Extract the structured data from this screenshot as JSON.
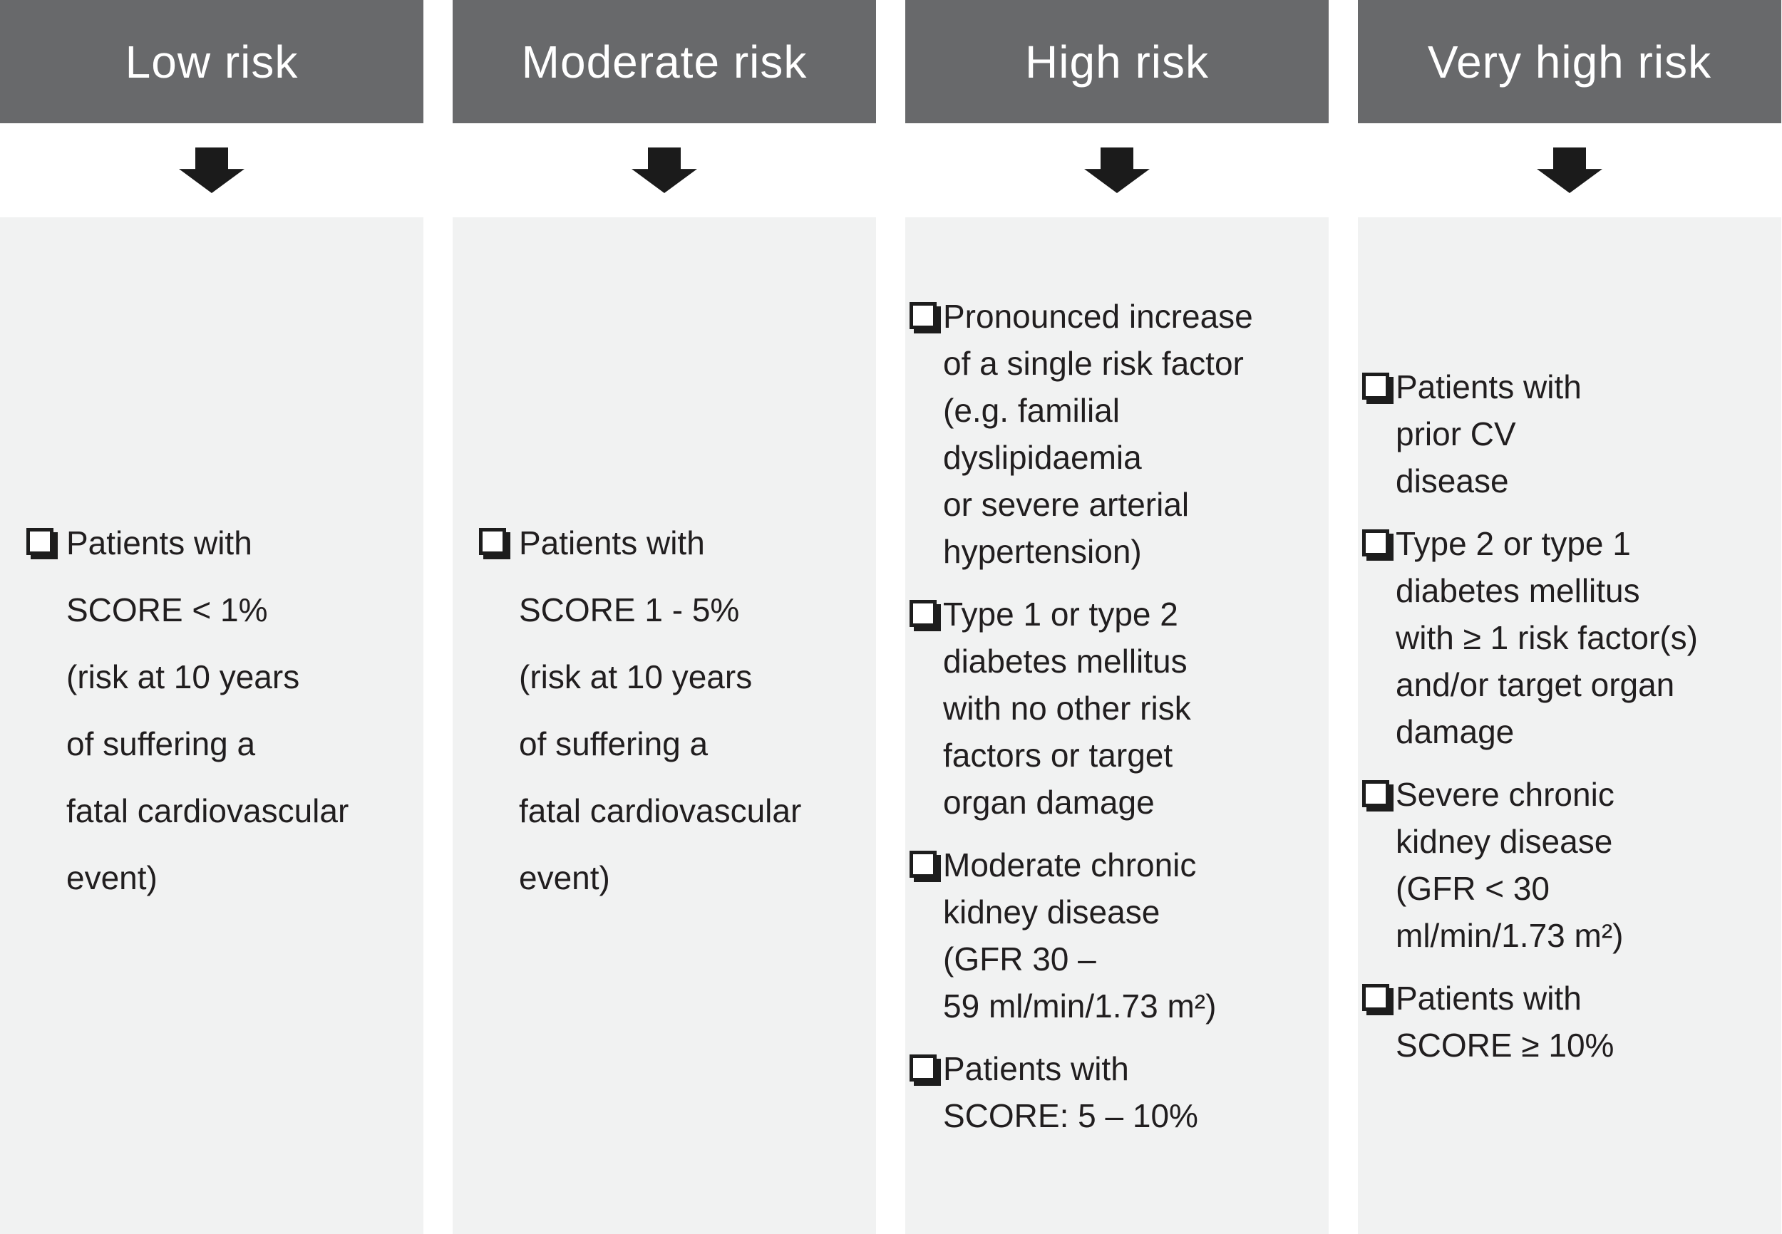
{
  "diagram": {
    "type": "risk-classification-flow",
    "colors": {
      "header_bg": "#68696b",
      "header_text": "#ffffff",
      "body_bg": "#f1f2f2",
      "arrow": "#1b1b1b",
      "text": "#211e1f",
      "checkbox_border": "#1d1d1d"
    },
    "icons": {
      "arrow": "down-arrow-icon",
      "bullet": "checkbox-bullet-icon (lower-right shadowed white square)"
    }
  },
  "columns": [
    {
      "id": "low-risk",
      "header": "Low risk",
      "items": [
        {
          "lines": [
            "Patients with",
            "SCORE < 1%",
            "(risk at 10 years",
            "of suffering a",
            "fatal cardiovascular",
            "event)"
          ]
        }
      ]
    },
    {
      "id": "moderate-risk",
      "header": "Moderate risk",
      "items": [
        {
          "lines": [
            "Patients with",
            "SCORE 1 - 5%",
            "(risk at 10 years",
            "of suffering a",
            "fatal cardiovascular",
            "event)"
          ]
        }
      ]
    },
    {
      "id": "high-risk",
      "header": "High risk",
      "items": [
        {
          "lines": [
            "Pronounced increase",
            "of a single risk factor",
            "(e.g. familial",
            "dyslipidaemia",
            "or severe arterial",
            "hypertension)"
          ]
        },
        {
          "lines": [
            "Type 1 or type 2",
            "diabetes mellitus",
            "with no other risk",
            "factors or target",
            "organ damage"
          ]
        },
        {
          "lines": [
            "Moderate chronic",
            "kidney disease",
            "(GFR 30 –",
            "59 ml/min/1.73 m²)"
          ]
        },
        {
          "lines": [
            "Patients with",
            "SCORE: 5 – 10%"
          ]
        }
      ]
    },
    {
      "id": "very-high-risk",
      "header": "Very high risk",
      "items": [
        {
          "lines": [
            "Patients with",
            "prior CV",
            "disease"
          ]
        },
        {
          "lines": [
            "Type 2 or type 1",
            "diabetes mellitus",
            "with ≥ 1 risk factor(s)",
            "and/or target organ",
            "damage"
          ]
        },
        {
          "lines": [
            "Severe chronic",
            "kidney disease",
            "(GFR < 30",
            "ml/min/1.73 m²)"
          ]
        },
        {
          "lines": [
            "Patients with",
            "SCORE ≥ 10%"
          ]
        }
      ]
    }
  ]
}
